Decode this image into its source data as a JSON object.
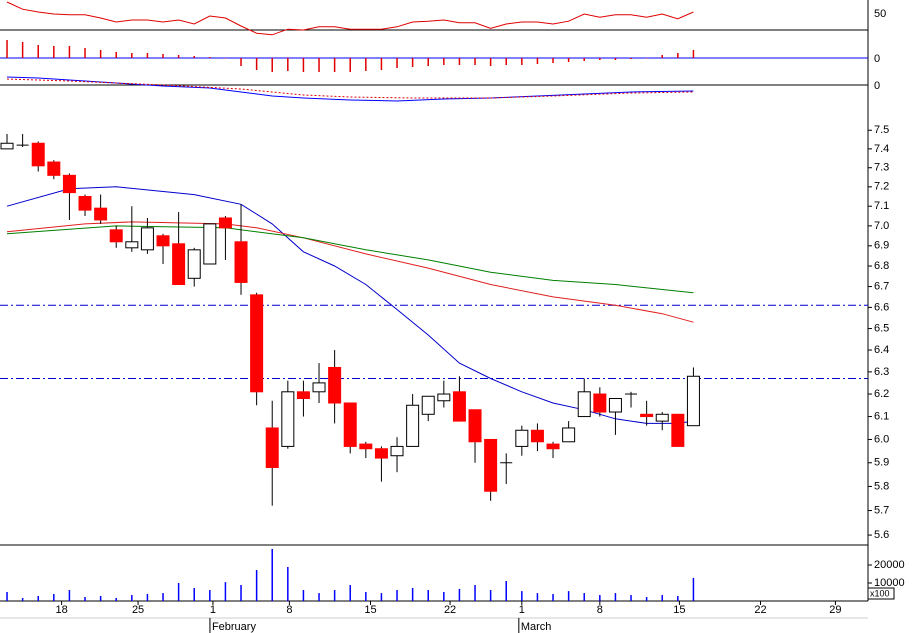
{
  "chart_data": [
    {
      "type": "line",
      "ylim": [
        37.5,
        87.5
      ],
      "yticks": [
        50
      ],
      "grid": true,
      "grid_color": "#000000",
      "x": [
        0,
        1,
        2,
        3,
        4,
        5,
        6,
        7,
        8,
        9,
        10,
        11,
        12,
        13,
        14,
        15,
        16,
        17,
        18,
        19,
        20,
        21,
        22,
        23,
        24,
        25,
        26,
        27,
        28,
        29,
        30,
        31,
        32,
        33,
        34,
        35,
        36,
        37,
        38,
        39,
        40,
        41,
        42,
        43,
        44
      ],
      "series": [
        {
          "color": "#e00000",
          "values": [
            85,
            76,
            72.5,
            70,
            69,
            69,
            65,
            60,
            62.5,
            62.5,
            60,
            62.5,
            57.5,
            67.5,
            65,
            55,
            46,
            44,
            51,
            50,
            54,
            54,
            51,
            51,
            51,
            54,
            60,
            61,
            62.5,
            59,
            59,
            52,
            57.5,
            60,
            60,
            57.5,
            61,
            70,
            66,
            69,
            69,
            66,
            70,
            64,
            72.5
          ]
        }
      ]
    },
    {
      "type": "bar",
      "ylim": [
        -0.22,
        0.23
      ],
      "yticks": [
        0
      ],
      "grid": true,
      "grid_color": "#0000ff",
      "color": "#e00000",
      "x": [
        0,
        1,
        2,
        3,
        4,
        5,
        6,
        7,
        8,
        9,
        10,
        11,
        12,
        13,
        14,
        15,
        16,
        17,
        18,
        19,
        20,
        21,
        22,
        23,
        24,
        25,
        26,
        27,
        28,
        29,
        30,
        31,
        32,
        33,
        34,
        35,
        36,
        37,
        38,
        39,
        40,
        41,
        42,
        43,
        44
      ],
      "values": [
        0.18,
        0.16,
        0.13,
        0.12,
        0.12,
        0.1,
        0.08,
        0.06,
        0.05,
        0.05,
        0.04,
        0.03,
        0.02,
        0.01,
        0,
        -0.08,
        -0.12,
        -0.14,
        -0.13,
        -0.14,
        -0.14,
        -0.14,
        -0.14,
        -0.13,
        -0.12,
        -0.1,
        -0.09,
        -0.08,
        -0.07,
        -0.07,
        -0.07,
        -0.08,
        -0.07,
        -0.07,
        -0.06,
        -0.05,
        -0.04,
        -0.03,
        -0.02,
        -0.02,
        -0.01,
        0,
        0.03,
        0.05,
        0.08
      ]
    },
    {
      "type": "line",
      "ylim": [
        -0.21,
        0.13
      ],
      "yticks": [
        0
      ],
      "grid": true,
      "grid_color": "#000000",
      "series": [
        {
          "color": "#0000ff",
          "x": [
            0,
            2,
            4,
            7,
            10,
            13,
            15,
            17,
            19,
            22,
            25,
            28,
            31,
            34,
            37,
            40,
            44
          ],
          "values": [
            0.08,
            0.07,
            0.05,
            0.02,
            -0.01,
            -0.03,
            -0.07,
            -0.11,
            -0.13,
            -0.15,
            -0.16,
            -0.14,
            -0.13,
            -0.11,
            -0.09,
            -0.07,
            -0.06
          ]
        },
        {
          "color": "#e00000",
          "dashed": true,
          "x": [
            0,
            4,
            10,
            15,
            19,
            22,
            26,
            31,
            35,
            40,
            44
          ],
          "values": [
            0.06,
            0.04,
            0,
            -0.04,
            -0.1,
            -0.12,
            -0.13,
            -0.13,
            -0.11,
            -0.08,
            -0.07
          ]
        }
      ]
    },
    {
      "type": "candlestick",
      "log_scale": true,
      "ylim": [
        5.56,
        7.71
      ],
      "grid": false,
      "yticks": [
        7.5,
        7.4,
        7.3,
        7.2,
        7.1,
        {
          "value": 7,
          "label": "7.0"
        },
        6.9,
        6.8,
        6.7,
        6.6,
        6.5,
        6.4,
        6.3,
        6.2,
        6.1,
        {
          "value": 6,
          "label": "6.0"
        },
        5.9,
        5.8,
        5.7,
        5.6
      ],
      "up_color": "#ffffff",
      "down_color": "#ff0000",
      "x": [
        0,
        1,
        2,
        3,
        4,
        5,
        6,
        7,
        8,
        9,
        10,
        11,
        12,
        13,
        14,
        15,
        16,
        17,
        18,
        19,
        20,
        21,
        22,
        23,
        24,
        25,
        26,
        27,
        28,
        29,
        30,
        31,
        32,
        33,
        34,
        35,
        36,
        37,
        38,
        39,
        40,
        41,
        42,
        43,
        44
      ],
      "open": [
        7.4,
        7.42,
        7.43,
        7.33,
        7.26,
        7.15,
        7.09,
        6.98,
        6.89,
        6.88,
        6.95,
        6.91,
        6.74,
        6.81,
        7.04,
        6.92,
        6.66,
        6.05,
        5.97,
        6.21,
        6.21,
        6.32,
        6.16,
        5.98,
        5.96,
        5.93,
        5.97,
        6.11,
        6.17,
        6.21,
        6.13,
        6.0,
        5.9,
        5.97,
        6.04,
        5.98,
        5.99,
        6.1,
        6.2,
        6.12,
        6.2,
        6.11,
        6.08,
        6.11,
        6.06
      ],
      "high": [
        7.48,
        7.48,
        7.44,
        7.34,
        7.27,
        7.16,
        7.16,
        7.0,
        7.1,
        7.04,
        6.96,
        7.07,
        6.89,
        7.01,
        7.05,
        7.11,
        6.67,
        6.17,
        6.26,
        6.26,
        6.34,
        6.4,
        6.16,
        5.99,
        5.97,
        6.01,
        6.2,
        6.19,
        6.26,
        6.28,
        6.13,
        6.0,
        5.94,
        6.06,
        6.07,
        5.99,
        6.08,
        6.27,
        6.23,
        6.18,
        6.21,
        6.17,
        6.12,
        6.11,
        6.32
      ],
      "low": [
        7.4,
        7.41,
        7.28,
        7.24,
        7.03,
        7.05,
        7.01,
        6.89,
        6.87,
        6.86,
        6.81,
        6.71,
        6.7,
        6.81,
        6.83,
        6.66,
        6.15,
        5.72,
        5.96,
        6.1,
        6.16,
        6.07,
        5.94,
        5.92,
        5.82,
        5.86,
        5.97,
        6.08,
        6.14,
        6.08,
        5.9,
        5.74,
        5.81,
        5.93,
        5.95,
        5.92,
        5.99,
        6.1,
        6.1,
        6.02,
        6.14,
        6.06,
        6.04,
        5.97,
        6.06
      ],
      "close": [
        7.43,
        7.42,
        7.31,
        7.26,
        7.17,
        7.08,
        7.03,
        6.92,
        6.92,
        6.99,
        6.9,
        6.71,
        6.88,
        7.01,
        6.99,
        6.72,
        6.21,
        5.88,
        6.21,
        6.18,
        6.25,
        6.16,
        5.97,
        5.96,
        5.92,
        5.97,
        6.15,
        6.19,
        6.2,
        6.08,
        5.99,
        5.78,
        5.9,
        6.04,
        5.99,
        5.96,
        6.05,
        6.21,
        6.12,
        6.18,
        6.2,
        6.1,
        6.11,
        5.97,
        6.28
      ],
      "series": [
        {
          "color": "#0000cc",
          "x": [
            0,
            4,
            7,
            12,
            15,
            17,
            19,
            21,
            23,
            25,
            27,
            29,
            31,
            33,
            35,
            37,
            39,
            41,
            43,
            44
          ],
          "values": [
            7.1,
            7.19,
            7.2,
            7.16,
            7.11,
            7.01,
            6.87,
            6.8,
            6.71,
            6.59,
            6.47,
            6.34,
            6.27,
            6.21,
            6.16,
            6.13,
            6.09,
            6.07,
            6.07,
            6.08
          ]
        },
        {
          "color": "#e02020",
          "x": [
            0,
            5,
            8,
            14,
            16,
            19,
            23,
            27,
            31,
            35,
            39,
            42,
            44
          ],
          "values": [
            6.97,
            7.01,
            7.02,
            7.01,
            6.99,
            6.94,
            6.86,
            6.79,
            6.71,
            6.65,
            6.61,
            6.57,
            6.53
          ]
        },
        {
          "color": "#008000",
          "x": [
            0,
            7,
            14,
            19,
            23,
            27,
            31,
            35,
            39,
            44
          ],
          "values": [
            6.96,
            7.0,
            6.99,
            6.94,
            6.88,
            6.83,
            6.77,
            6.73,
            6.71,
            6.67
          ]
        }
      ],
      "hlines": [
        6.61,
        6.27
      ],
      "hline_color": "#0000cc"
    },
    {
      "type": "bar",
      "ylim": [
        0,
        30000
      ],
      "yticks": [
        20000,
        10000
      ],
      "grid": false,
      "color": "#0000ff",
      "unit_label": "x100",
      "x": [
        0,
        1,
        2,
        3,
        4,
        5,
        6,
        7,
        8,
        9,
        10,
        11,
        12,
        13,
        14,
        15,
        16,
        17,
        18,
        19,
        20,
        21,
        22,
        23,
        24,
        25,
        26,
        27,
        28,
        29,
        30,
        31,
        32,
        33,
        34,
        35,
        36,
        37,
        38,
        39,
        40,
        41,
        42,
        43,
        44
      ],
      "values": [
        5000,
        1700,
        2800,
        3900,
        6100,
        2200,
        2800,
        1700,
        3300,
        3900,
        4400,
        10000,
        7200,
        6100,
        10500,
        8900,
        17200,
        28900,
        18900,
        6100,
        4400,
        6100,
        8900,
        5000,
        4400,
        6100,
        7200,
        6100,
        5000,
        6700,
        8900,
        6100,
        11100,
        5500,
        4400,
        3900,
        5500,
        4400,
        3300,
        4400,
        3300,
        2200,
        3300,
        2800,
        12800
      ],
      "xlim": [
        -0.45,
        55.19
      ],
      "xticks": [
        {
          "value": 3.5,
          "label": "18"
        },
        {
          "value": 8.4,
          "label": "25"
        },
        {
          "value": 13.2,
          "label": "1"
        },
        {
          "value": 18.1,
          "label": "8"
        },
        {
          "value": 23.3,
          "label": "15"
        },
        {
          "value": 28.4,
          "label": "22"
        },
        {
          "value": 33,
          "label": "1"
        },
        {
          "value": 38,
          "label": "8"
        },
        {
          "value": 43.1,
          "label": "15"
        },
        {
          "value": 48.3,
          "label": "22"
        },
        {
          "value": 53.1,
          "label": "29"
        }
      ],
      "month_labels": [
        {
          "value": 13.2,
          "label": "February"
        },
        {
          "value": 33,
          "label": "March"
        }
      ]
    }
  ]
}
